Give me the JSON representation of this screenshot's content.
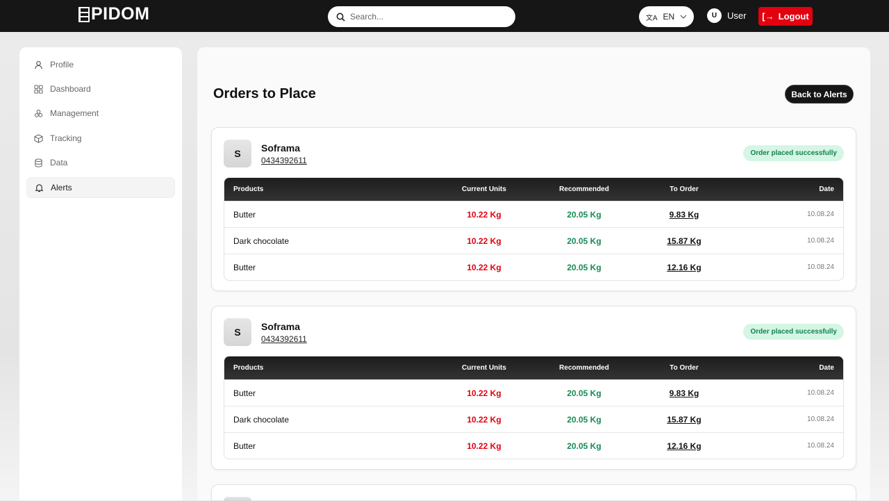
{
  "header": {
    "logo": "PIDOM",
    "search_placeholder": "Search...",
    "language": "EN",
    "user_initial": "U",
    "user_name": "User",
    "logout_label": "Logout"
  },
  "sidebar": {
    "items": [
      {
        "label": "Profile",
        "icon": "user-icon"
      },
      {
        "label": "Dashboard",
        "icon": "dashboard-icon"
      },
      {
        "label": "Management",
        "icon": "management-icon"
      },
      {
        "label": "Tracking",
        "icon": "package-icon"
      },
      {
        "label": "Data",
        "icon": "database-icon"
      },
      {
        "label": "Alerts",
        "icon": "bell-icon",
        "active": true
      }
    ]
  },
  "main": {
    "title": "Orders to Place",
    "back_label": "Back to Alerts",
    "columns": [
      "Products",
      "Current Units",
      "Recommended",
      "To Order",
      "Date"
    ],
    "orders": [
      {
        "initial": "S",
        "supplier": "Soframa",
        "phone": "0434392611",
        "status": "Order placed successfully",
        "rows": [
          {
            "product": "Butter",
            "current": "10.22 Kg",
            "recommended": "20.05 Kg",
            "to_order": "9.83 Kg",
            "date": "10.08.24"
          },
          {
            "product": "Dark chocolate",
            "current": "10.22 Kg",
            "recommended": "20.05 Kg",
            "to_order": "15.87 Kg",
            "date": "10.08.24"
          },
          {
            "product": "Butter",
            "current": "10.22 Kg",
            "recommended": "20.05 Kg",
            "to_order": "12.16 Kg",
            "date": "10.08.24"
          }
        ]
      },
      {
        "initial": "S",
        "supplier": "Soframa",
        "phone": "0434392611",
        "status": "Order placed successfully",
        "rows": [
          {
            "product": "Butter",
            "current": "10.22 Kg",
            "recommended": "20.05 Kg",
            "to_order": "9.83 Kg",
            "date": "10.08.24"
          },
          {
            "product": "Dark chocolate",
            "current": "10.22 Kg",
            "recommended": "20.05 Kg",
            "to_order": "15.87 Kg",
            "date": "10.08.24"
          },
          {
            "product": "Butter",
            "current": "10.22 Kg",
            "recommended": "20.05 Kg",
            "to_order": "12.16 Kg",
            "date": "10.08.24"
          }
        ]
      }
    ]
  },
  "colors": {
    "accent": "#e3000f",
    "success": "#168a55",
    "dark": "#161616"
  }
}
